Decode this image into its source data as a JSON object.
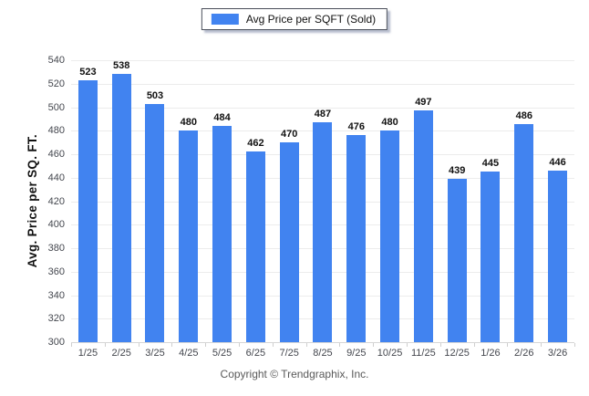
{
  "legend": {
    "label": "Avg Price per SQFT (Sold)",
    "swatch_color": "#4183F0"
  },
  "footer": {
    "copyright": "Copyright © Trendgraphix, Inc."
  },
  "colors": {
    "bar": "#4183F0",
    "gridline": "#ececec",
    "baseline": "#d6d6d6",
    "tick_label": "#44474e",
    "value_label": "#111111",
    "footer_text": "#5a5a5a",
    "legend_border": "#4a4f5a"
  },
  "chart_data": {
    "type": "bar",
    "title": "",
    "xlabel": "",
    "ylabel": "Avg. Price per SQ. FT.",
    "series_name": "Avg Price per SQFT (Sold)",
    "categories": [
      "1/25",
      "2/25",
      "3/25",
      "4/25",
      "5/25",
      "6/25",
      "7/25",
      "8/25",
      "9/25",
      "10/25",
      "11/25",
      "12/25",
      "1/26",
      "2/26",
      "3/26"
    ],
    "values": [
      523,
      538,
      503,
      480,
      484,
      462,
      470,
      487,
      476,
      480,
      497,
      439,
      445,
      486,
      446
    ],
    "ylim": [
      300,
      540
    ],
    "ytick_step": 20,
    "grid": "horizontal",
    "legend_position": "top-center",
    "bar_color": "#4183F0"
  }
}
